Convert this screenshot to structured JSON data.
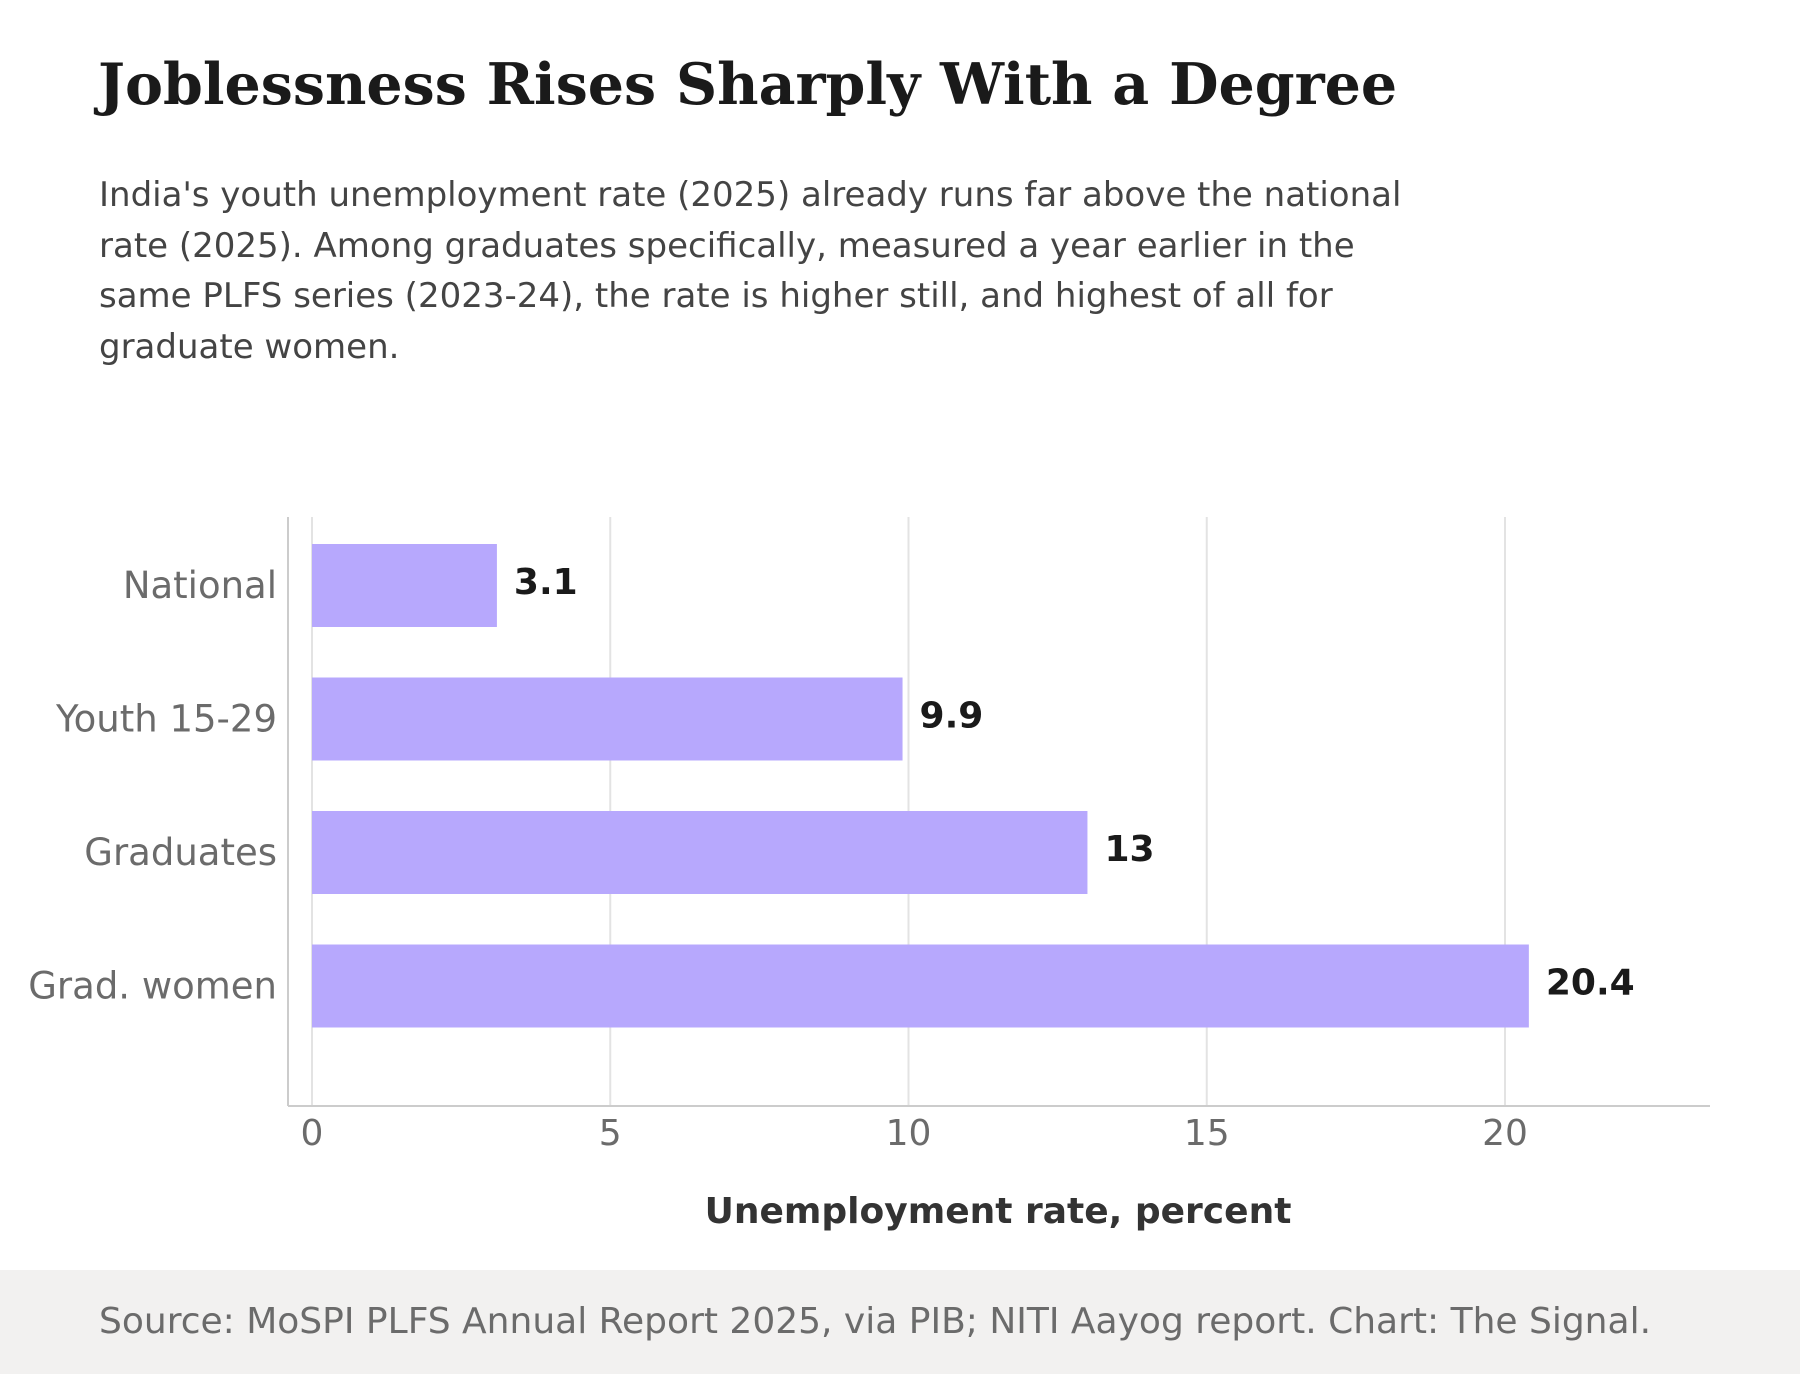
{
  "header": {
    "title": "Joblessness Rises Sharply With a Degree",
    "subtitle": "India's youth unemployment rate (2025) already runs far above the national rate (2025). Among graduates specifically, measured a year earlier in the same PLFS series (2023-24), the rate is higher still, and highest of all for graduate women."
  },
  "chart_data": {
    "type": "bar",
    "orientation": "horizontal",
    "categories": [
      "National",
      "Youth 15-29",
      "Graduates",
      "Grad. women"
    ],
    "values": [
      3.1,
      9.9,
      13,
      20.4
    ],
    "value_labels": [
      "3.1",
      "9.9",
      "13",
      "20.4"
    ],
    "xlabel": "Unemployment rate, percent",
    "xlim": [
      0,
      23.5
    ],
    "xticks": [
      0,
      5,
      10,
      15,
      20
    ],
    "grid": "vertical",
    "bar_color": "#b7a8fd"
  },
  "footer": {
    "source": "Source: MoSPI PLFS Annual Report 2025, via PIB; NITI Aayog report. Chart: The Signal."
  }
}
